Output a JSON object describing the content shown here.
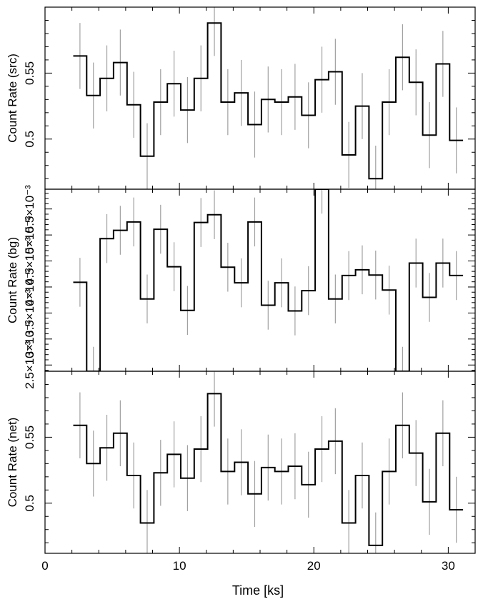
{
  "chart_data": [
    {
      "type": "line",
      "ylabel": "Count Rate (src)",
      "ylim": [
        0.462,
        0.6
      ],
      "yticks": [
        0.5,
        0.55
      ],
      "ytick_labels": [
        "0.5",
        "0.55"
      ],
      "xlim": [
        0,
        32
      ],
      "bin_width": 1.0,
      "series": [
        {
          "x": [
            2.6,
            3.6,
            4.6,
            5.6,
            6.6,
            7.6,
            8.6,
            9.6,
            10.6,
            11.6,
            12.6,
            13.6,
            14.6,
            15.6,
            16.6,
            17.6,
            18.6,
            19.6,
            20.6,
            21.6,
            22.6,
            23.6,
            24.6,
            25.6,
            26.6,
            27.6,
            28.6,
            29.6,
            30.6
          ],
          "y": [
            0.563,
            0.533,
            0.546,
            0.558,
            0.526,
            0.487,
            0.528,
            0.542,
            0.522,
            0.546,
            0.588,
            0.528,
            0.535,
            0.511,
            0.53,
            0.528,
            0.532,
            0.518,
            0.545,
            0.551,
            0.488,
            0.525,
            0.47,
            0.528,
            0.562,
            0.543,
            0.503,
            0.557,
            0.499
          ],
          "err": [
            0.025,
            0.025,
            0.025,
            0.025,
            0.025,
            0.025,
            0.025,
            0.025,
            0.025,
            0.025,
            0.025,
            0.025,
            0.025,
            0.025,
            0.025,
            0.025,
            0.025,
            0.025,
            0.025,
            0.025,
            0.025,
            0.025,
            0.025,
            0.025,
            0.025,
            0.025,
            0.025,
            0.025,
            0.025
          ]
        }
      ]
    },
    {
      "type": "line",
      "ylabel": "Count Rate (bg)",
      "ylim": [
        0.00238,
        0.00588
      ],
      "yticks": [
        0.0025,
        0.003,
        0.0035,
        0.004,
        0.0045,
        0.005,
        0.0055
      ],
      "ytick_labels": [
        "2.5×10⁻³",
        "3×10⁻³",
        "3.5×10⁻³",
        "4×10⁻³",
        "4.5×10⁻³",
        "5×10⁻³",
        "5.5×10⁻³"
      ],
      "xlim": [
        0,
        32
      ],
      "bin_width": 1.0,
      "series": [
        {
          "x": [
            2.6,
            3.6,
            4.6,
            5.6,
            6.6,
            7.6,
            8.6,
            9.6,
            10.6,
            11.6,
            12.6,
            13.6,
            14.6,
            15.6,
            16.6,
            17.6,
            18.6,
            19.6,
            20.6,
            21.6,
            22.6,
            23.6,
            24.6,
            25.6,
            26.6,
            27.6,
            28.6,
            29.6,
            30.6
          ],
          "y": [
            0.00409,
            0.00238,
            0.00493,
            0.00509,
            0.00525,
            0.00377,
            0.00511,
            0.00439,
            0.00355,
            0.00524,
            0.00539,
            0.00438,
            0.00408,
            0.00525,
            0.00365,
            0.00408,
            0.00354,
            0.00393,
            0.00588,
            0.00377,
            0.00422,
            0.00433,
            0.00423,
            0.00394,
            0.00238,
            0.00446,
            0.0038,
            0.00446,
            0.00422
          ],
          "err": [
            0.00047,
            0.00047,
            0.00047,
            0.00047,
            0.00047,
            0.00047,
            0.00047,
            0.00047,
            0.00047,
            0.00047,
            0.00047,
            0.00047,
            0.00047,
            0.00047,
            0.00047,
            0.00047,
            0.00047,
            0.00047,
            0.00047,
            0.00047,
            0.00047,
            0.00047,
            0.00047,
            0.00047,
            0.00047,
            0.00047,
            0.00047,
            0.00047,
            0.00047
          ]
        }
      ]
    },
    {
      "type": "line",
      "ylabel": "Count Rate (net)",
      "ylim": [
        0.462,
        0.6
      ],
      "yticks": [
        0.5,
        0.55
      ],
      "ytick_labels": [
        "0.5",
        "0.55"
      ],
      "xlim": [
        0,
        32
      ],
      "xlabel": "Time [ks]",
      "xticks": [
        0,
        10,
        20,
        30
      ],
      "xtick_labels": [
        "0",
        "10",
        "20",
        "30"
      ],
      "bin_width": 1.0,
      "series": [
        {
          "x": [
            2.6,
            3.6,
            4.6,
            5.6,
            6.6,
            7.6,
            8.6,
            9.6,
            10.6,
            11.6,
            12.6,
            13.6,
            14.6,
            15.6,
            16.6,
            17.6,
            18.6,
            19.6,
            20.6,
            21.6,
            22.6,
            23.6,
            24.6,
            25.6,
            26.6,
            27.6,
            28.6,
            29.6,
            30.6
          ],
          "y": [
            0.559,
            0.53,
            0.542,
            0.553,
            0.521,
            0.485,
            0.523,
            0.537,
            0.519,
            0.541,
            0.583,
            0.524,
            0.531,
            0.507,
            0.527,
            0.524,
            0.528,
            0.514,
            0.541,
            0.547,
            0.485,
            0.521,
            0.468,
            0.524,
            0.559,
            0.538,
            0.501,
            0.553,
            0.495
          ],
          "err": [
            0.025,
            0.025,
            0.025,
            0.025,
            0.025,
            0.025,
            0.025,
            0.025,
            0.025,
            0.025,
            0.025,
            0.025,
            0.025,
            0.025,
            0.025,
            0.025,
            0.025,
            0.025,
            0.025,
            0.025,
            0.025,
            0.025,
            0.025,
            0.025,
            0.025,
            0.025,
            0.025,
            0.025,
            0.025
          ]
        }
      ]
    }
  ],
  "colors": {
    "step": "#000000",
    "error": "#a0a0a0",
    "axis": "#000000"
  }
}
